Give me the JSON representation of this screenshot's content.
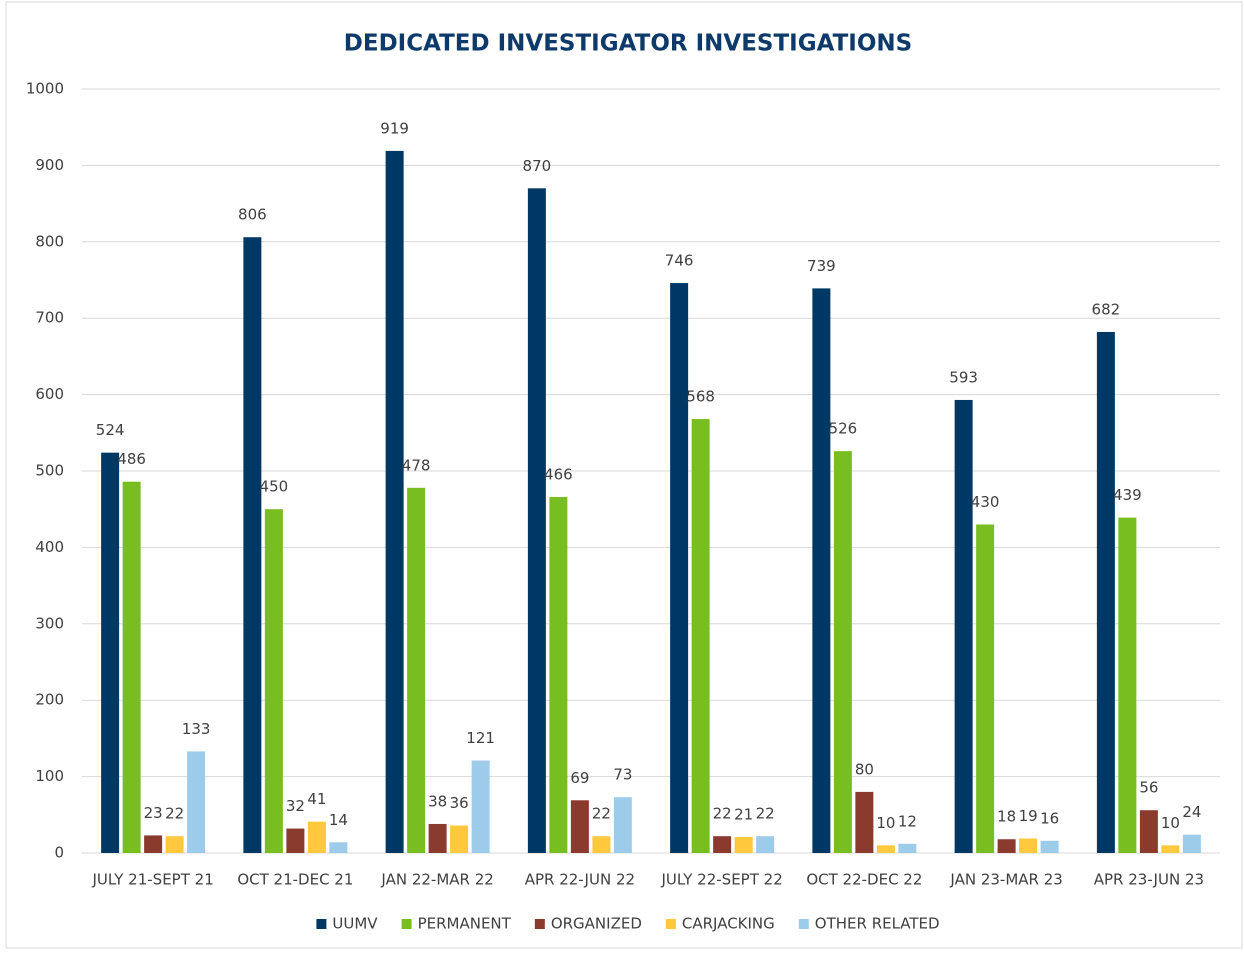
{
  "chart_data": {
    "type": "bar",
    "title": "DEDICATED INVESTIGATOR INVESTIGATIONS",
    "categories": [
      "JULY 21-SEPT 21",
      "OCT 21-DEC 21",
      "JAN 22-MAR 22",
      "APR 22-JUN 22",
      "JULY 22-SEPT 22",
      "OCT 22-DEC 22",
      "JAN 23-MAR 23",
      "APR 23-JUN 23"
    ],
    "series": [
      {
        "name": "UUMV",
        "color": "#003865",
        "values": [
          524,
          806,
          919,
          870,
          746,
          739,
          593,
          682
        ]
      },
      {
        "name": "PERMANENT",
        "color": "#78be20",
        "values": [
          486,
          450,
          478,
          466,
          568,
          526,
          430,
          439
        ]
      },
      {
        "name": "ORGANIZED",
        "color": "#8b3a2e",
        "values": [
          23,
          32,
          38,
          69,
          22,
          80,
          18,
          56
        ]
      },
      {
        "name": "CARJACKING",
        "color": "#ffc83d",
        "values": [
          22,
          41,
          36,
          22,
          21,
          10,
          19,
          10
        ]
      },
      {
        "name": "OTHER RELATED",
        "color": "#9dcbea",
        "values": [
          133,
          14,
          121,
          73,
          22,
          12,
          16,
          24
        ]
      }
    ],
    "ylim": [
      0,
      1000
    ],
    "yticks": [
      0,
      100,
      200,
      300,
      400,
      500,
      600,
      700,
      800,
      900,
      1000
    ],
    "grid": true,
    "legend": "bottom"
  }
}
